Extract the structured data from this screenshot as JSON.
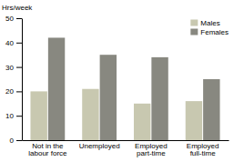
{
  "chart_data": {
    "type": "bar",
    "ylabel": "Hrs/week",
    "categories": [
      "Not in the\nlabour force",
      "Unemployed",
      "Employed\npart-time",
      "Employed\nfull-time"
    ],
    "series": [
      {
        "name": "Males",
        "color": "#c8c8b0",
        "values": [
          20,
          21,
          15,
          16
        ]
      },
      {
        "name": "Females",
        "color": "#888880",
        "values": [
          42,
          35,
          34,
          25
        ]
      }
    ],
    "ylim": [
      0,
      50
    ],
    "yticks": [
      0,
      10,
      20,
      30,
      40,
      50
    ],
    "grid": false,
    "legend": "upper right"
  }
}
